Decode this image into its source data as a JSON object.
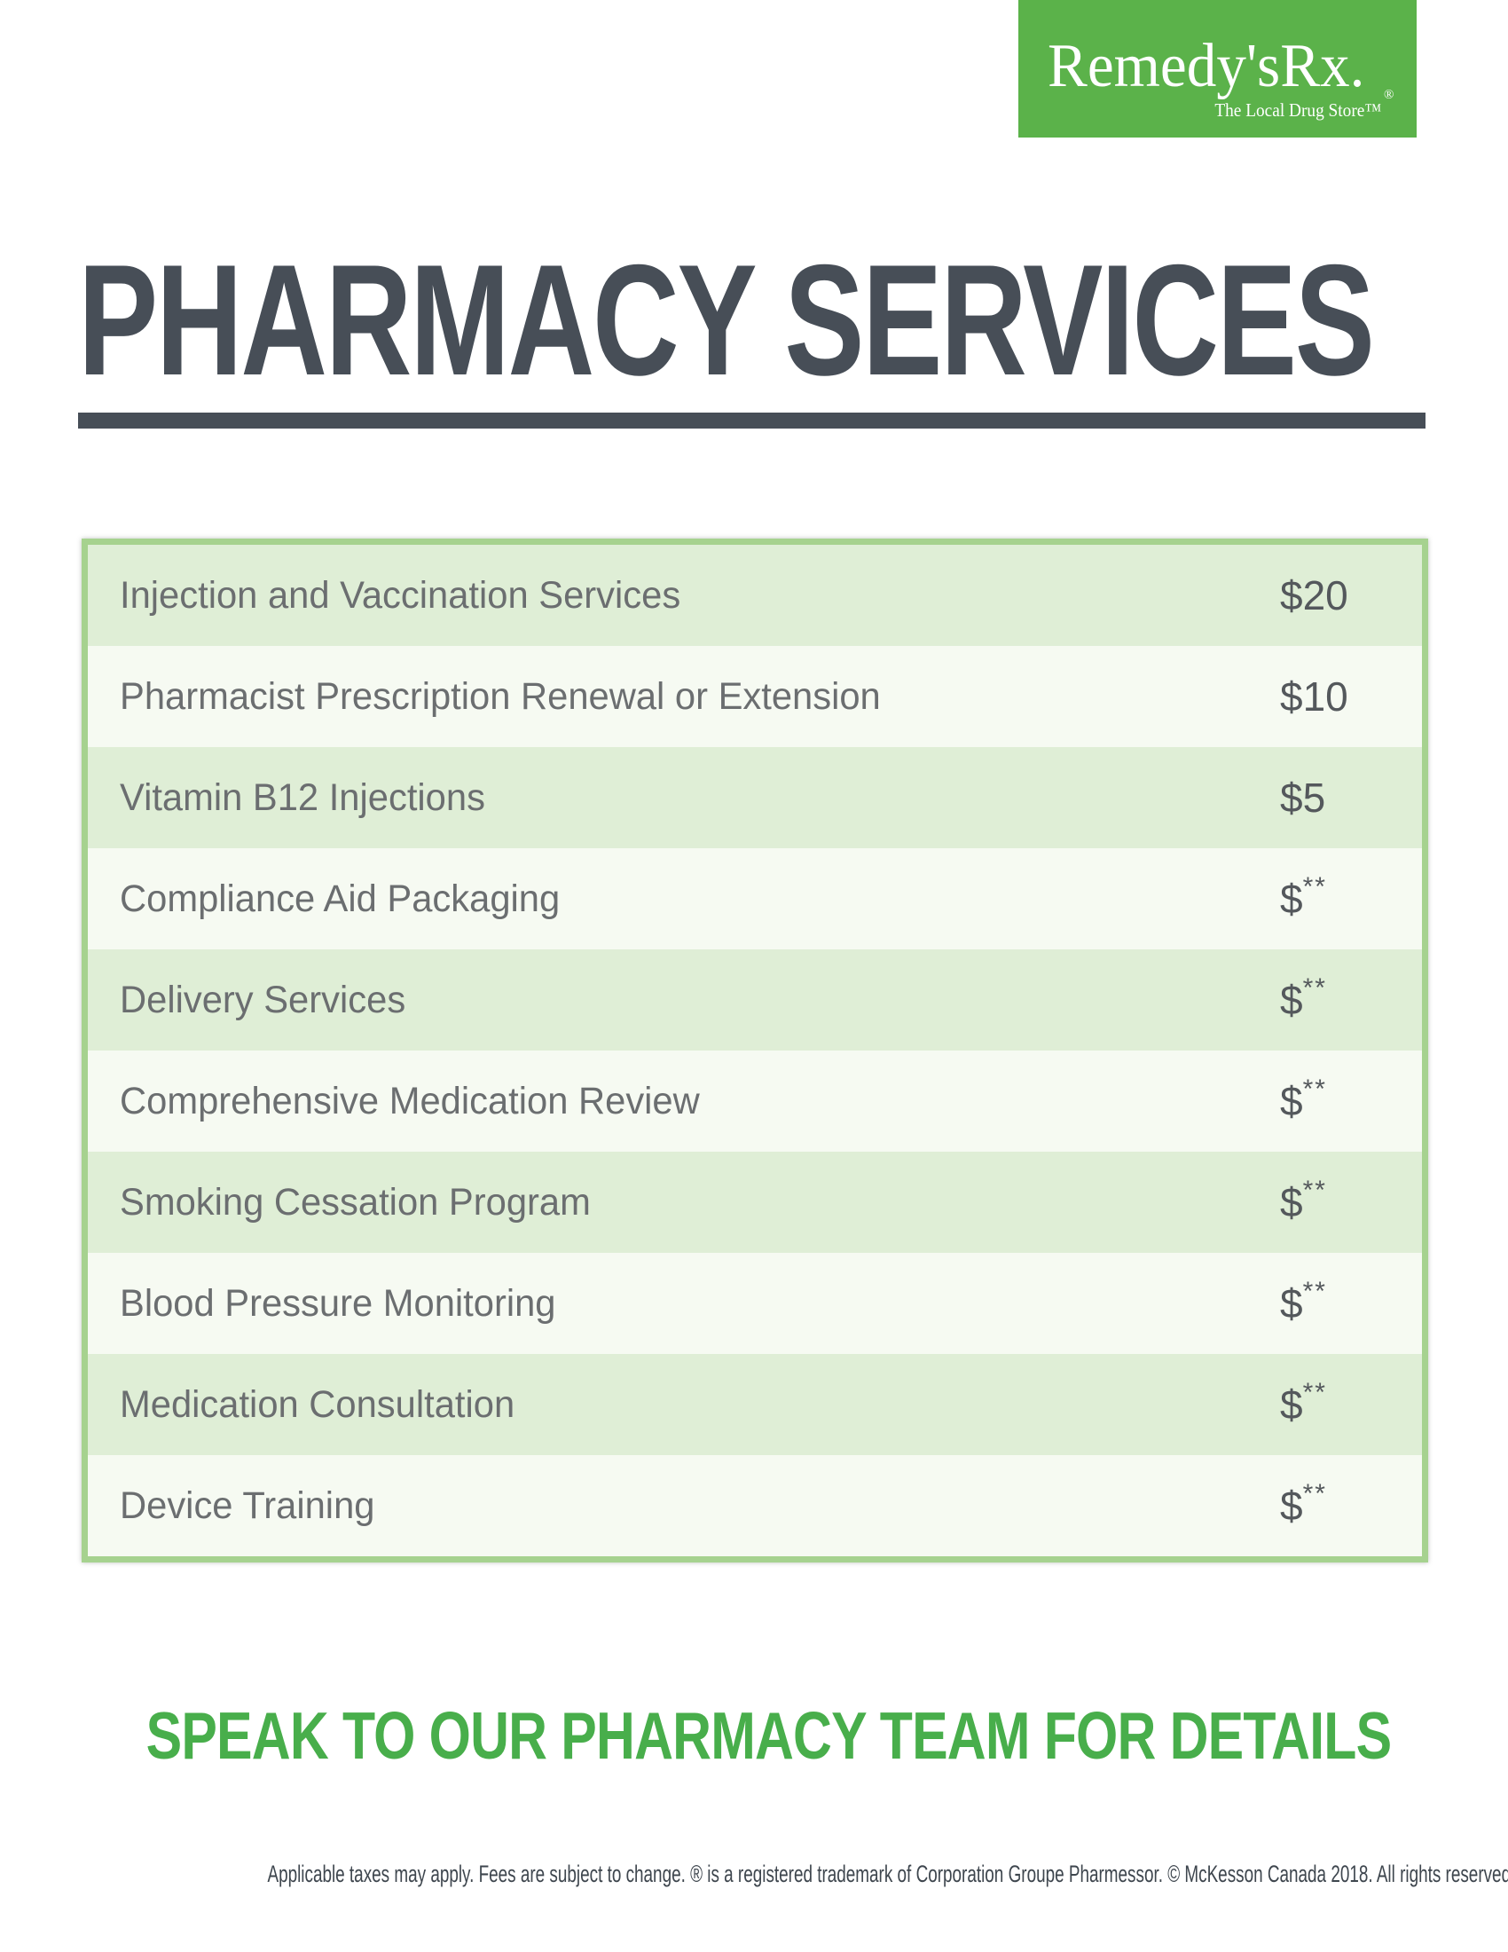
{
  "logo": {
    "brand": "Remedy'sRx.",
    "registered_mark": "®",
    "tagline": "The Local Drug Store™"
  },
  "header": {
    "title": "PHARMACY SERVICES"
  },
  "table": {
    "rows": [
      {
        "service": "Injection and Vaccination Services",
        "price": "$20"
      },
      {
        "service": "Pharmacist Prescription Renewal or Extension",
        "price": "$10"
      },
      {
        "service": "Vitamin B12 Injections",
        "price": "$5"
      },
      {
        "service": "Compliance Aid Packaging",
        "price": "$**"
      },
      {
        "service": "Delivery Services",
        "price": "$**"
      },
      {
        "service": "Comprehensive Medication Review",
        "price": "$**"
      },
      {
        "service": "Smoking Cessation Program",
        "price": "$**"
      },
      {
        "service": "Blood Pressure Monitoring",
        "price": "$**"
      },
      {
        "service": "Medication Consultation",
        "price": "$**"
      },
      {
        "service": "Device Training",
        "price": "$**"
      }
    ]
  },
  "footer": {
    "headline": "SPEAK TO OUR PHARMACY TEAM FOR DETAILS",
    "legal": "Applicable taxes may apply. Fees are subject to change. ® is a registered trademark of Corporation Groupe Pharmessor. © McKesson Canada 2018. All rights reserved."
  },
  "colors": {
    "logo_green": "#5bb24a",
    "headline_green": "#48ae4b",
    "table_border_green": "#a6d28f",
    "row_green": "#dfeed6",
    "row_off_white": "#f6faf2",
    "title_dark_gray": "#474e57",
    "service_text_gray": "#6b6e70",
    "price_text_gray": "#54585c",
    "legal_text_gray": "#3e464e"
  }
}
